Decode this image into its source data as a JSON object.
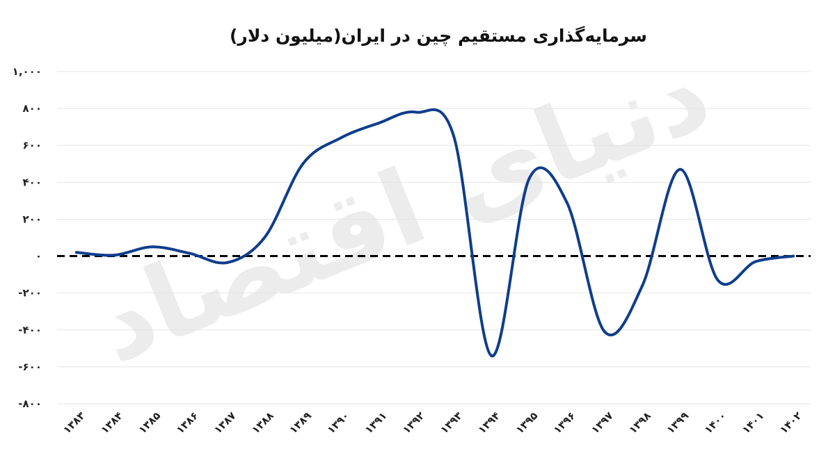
{
  "chart_data": {
    "type": "line",
    "title": "سرمایه‌گذاری مستقیم چین در ایران(میلیون دلار)",
    "xlabel": "",
    "ylabel": "",
    "watermark": "دنیای اقتصاد",
    "ylim": [
      -800,
      1000
    ],
    "yticks": [
      1000,
      800,
      600,
      400,
      200,
      0,
      -200,
      -400,
      -600,
      -800
    ],
    "ytick_labels": [
      "۱,۰۰۰",
      "۸۰۰",
      "۶۰۰",
      "۴۰۰",
      "۲۰۰",
      "۰",
      "-۲۰۰",
      "-۴۰۰",
      "-۶۰۰",
      "-۸۰۰"
    ],
    "categories": [
      "۱۳۸۳",
      "۱۳۸۴",
      "۱۳۸۵",
      "۱۳۸۶",
      "۱۳۸۷",
      "۱۳۸۸",
      "۱۳۸۹",
      "۱۳۹۰",
      "۱۳۹۱",
      "۱۳۹۲",
      "۱۳۹۳",
      "۱۳۹۴",
      "۱۳۹۵",
      "۱۳۹۶",
      "۱۳۹۷",
      "۱۳۹۸",
      "۱۳۹۹",
      "۱۴۰۰",
      "۱۴۰۱",
      "۱۴۰۲"
    ],
    "series": [
      {
        "values": [
          20,
          5,
          50,
          15,
          -35,
          105,
          500,
          640,
          720,
          780,
          650,
          -540,
          420,
          290,
          -410,
          -160,
          470,
          -130,
          -30,
          0
        ],
        "color": "#0f3d8c"
      }
    ],
    "zero_line": {
      "style": "dashed",
      "color": "#000000"
    },
    "grid": true,
    "legend": "none"
  }
}
